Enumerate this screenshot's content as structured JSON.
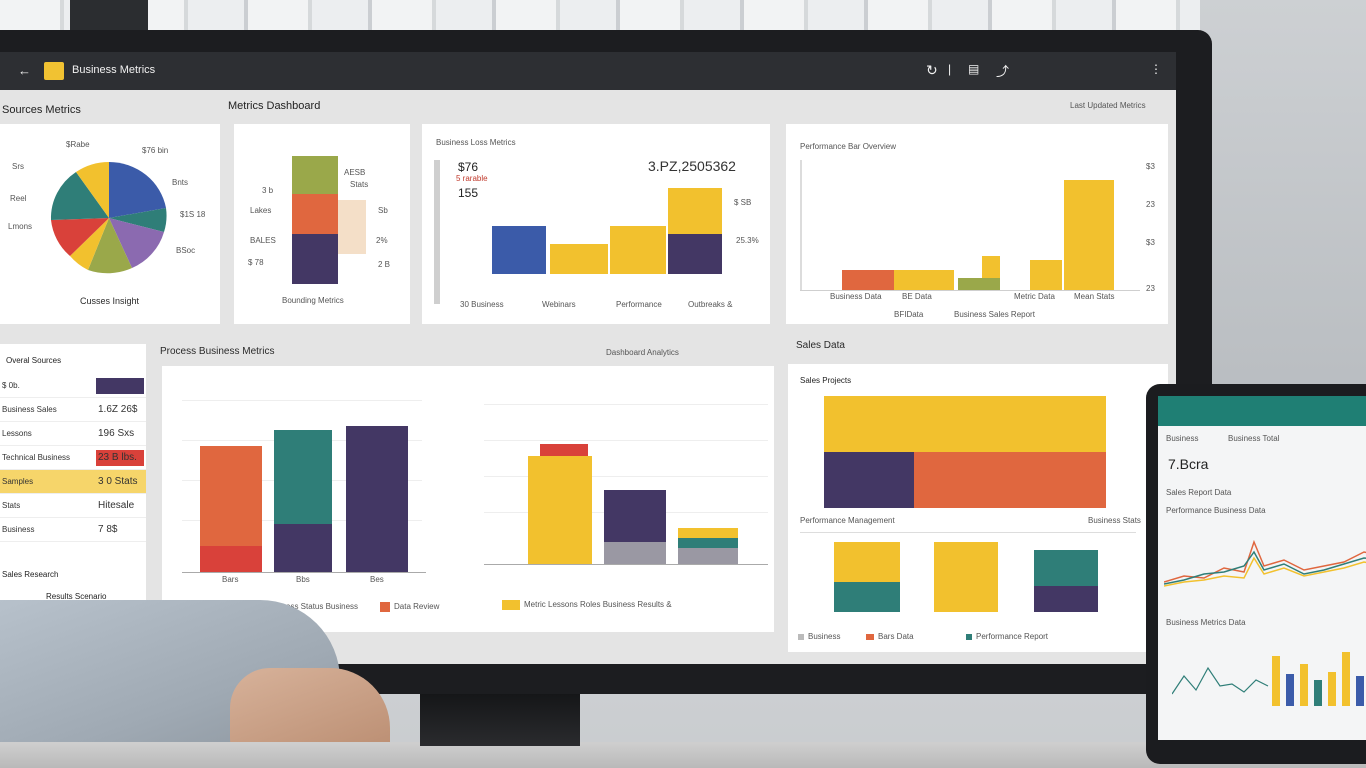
{
  "app": {
    "title": "Business Metrics",
    "logo_color": "#f1c232"
  },
  "topbar_icons": [
    "back-icon",
    "refresh-icon",
    "info-icon",
    "chart-icon",
    "tool-icon",
    "more-icon"
  ],
  "colors": {
    "blue": "#3b5ba9",
    "teal": "#2f7e78",
    "yellow": "#f2c12e",
    "orange": "#e0673f",
    "red": "#d9413a",
    "purple": "#433764",
    "olive": "#9aa84a",
    "violet": "#8b6ab0",
    "peach": "#f4dfc8",
    "gray": "#9a98a3"
  },
  "sections": {
    "left_title": "Sources Metrics",
    "mid_title": "Metrics Dashboard",
    "right_note": "Last Updated Metrics",
    "bottom_left_title": "Process Business Metrics",
    "bottom_mid_title": "Dashboard Analytics",
    "bottom_right_title": "Sales Data"
  },
  "pie_panel": {
    "labels": [
      "$Rabe",
      "$76 bin",
      "Srs",
      "Reel",
      "Lmons",
      "Bnts",
      "$1S 18",
      "BSoc"
    ],
    "caption": "Cusses Insight",
    "slices": [
      {
        "value": 20,
        "color": "blue"
      },
      {
        "value": 14,
        "color": "teal"
      },
      {
        "value": 18,
        "color": "violet"
      },
      {
        "value": 12,
        "color": "olive"
      },
      {
        "value": 8,
        "color": "yellow"
      },
      {
        "value": 14,
        "color": "red"
      },
      {
        "value": 14,
        "color": "teal"
      }
    ]
  },
  "stack_panel": {
    "labels_left": [
      "3 b",
      "Lakes",
      "BALES",
      "$ 78"
    ],
    "labels_right": [
      "AESB",
      "Stats",
      "Sb",
      "2%",
      "2 B"
    ],
    "caption": "Bounding Metrics"
  },
  "kpi_panel": {
    "title": "Business Loss Metrics",
    "big_value": "3.PZ,2505362",
    "values": [
      "$76",
      "155"
    ],
    "sub": "5 rarable",
    "note_lines": [
      "$ SB",
      "25.3%"
    ],
    "cats": [
      "30 Business",
      "Webinars",
      "Performance",
      "Outbreaks &"
    ]
  },
  "right_top_panel": {
    "title": "Performance Bar Overview",
    "cats": [
      "Business Data",
      "BE Data",
      "Metric Data",
      "Mean Stats"
    ],
    "legend": [
      "BFIData",
      "Business Sales Report"
    ],
    "ticks": [
      "$3",
      "23",
      "$3",
      "23"
    ]
  },
  "left_list": {
    "title": "Overal Sources",
    "rows": [
      {
        "label": "$ 0b.",
        "value": "",
        "bar": "purple"
      },
      {
        "label": "Business Sales",
        "value": "1.6Z 26$",
        "bar": ""
      },
      {
        "label": "Lessons",
        "value": "196 Sxs",
        "bar": ""
      },
      {
        "label": "Technical Business",
        "value": "23 B lbs.",
        "bar": "red"
      },
      {
        "label": "Samples",
        "value": "3 0 Stats",
        "bar": "yellow"
      },
      {
        "label": "Stats",
        "value": "Hitesale",
        "bar": ""
      },
      {
        "label": "Business",
        "value": "7 8$",
        "bar": ""
      }
    ],
    "footer": [
      "Sales Research",
      "Results Scenario"
    ]
  },
  "bottom_left_chart": {
    "cats": [
      "Bars",
      "Bbs",
      "Bes"
    ],
    "legend": [
      "Business Status Business",
      "Data Review"
    ]
  },
  "bottom_mid_chart": {
    "legend": "Metric Lessons Roles Business Results &"
  },
  "bottom_right_chart": {
    "title": "Sales Projects",
    "subtitle": "Performance Management",
    "right_note": "Business Stats",
    "legend": [
      "Business",
      "Bars Data",
      "Performance Report"
    ]
  },
  "tablet": {
    "header_left": "Business",
    "header_right": "Business Total",
    "big_value": "7.Bcra",
    "line1": "Sales Report Data",
    "line2": "Performance Business Data",
    "line3": "Business Metrics Data"
  }
}
